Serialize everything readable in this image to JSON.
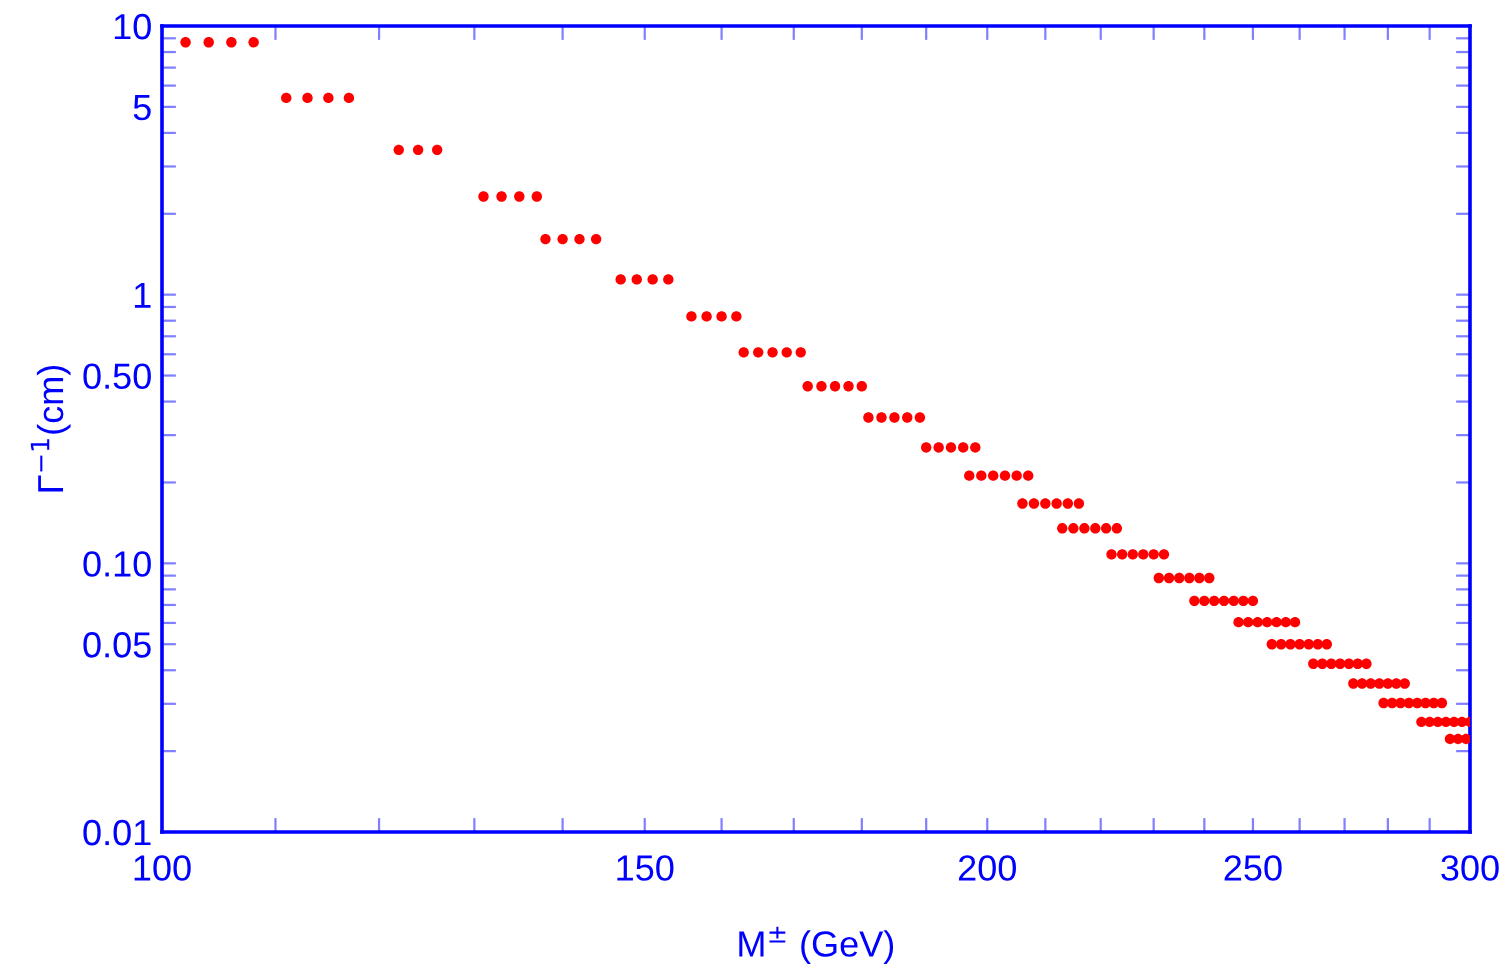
{
  "chart_data": {
    "type": "scatter",
    "xlabel": "M$^{±}$ (GeV)",
    "ylabel": "Γ$^{−1}$(cm)",
    "log": "xy",
    "grid": false,
    "marker": "circle",
    "xlim": [
      100,
      300
    ],
    "ylim": [
      0.01,
      10
    ],
    "xticks": [
      100,
      {
        "value": 110,
        "label": null
      },
      {
        "value": 120,
        "label": null
      },
      {
        "value": 130,
        "label": null
      },
      {
        "value": 140,
        "label": null
      },
      150,
      {
        "value": 160,
        "label": null
      },
      {
        "value": 170,
        "label": null
      },
      {
        "value": 180,
        "label": null
      },
      {
        "value": 190,
        "label": null
      },
      200,
      {
        "value": 210,
        "label": null
      },
      {
        "value": 220,
        "label": null
      },
      {
        "value": 230,
        "label": null
      },
      {
        "value": 240,
        "label": null
      },
      250,
      {
        "value": 260,
        "label": null
      },
      {
        "value": 270,
        "label": null
      },
      {
        "value": 280,
        "label": null
      },
      {
        "value": 290,
        "label": null
      },
      300
    ],
    "yticks": [
      0.01,
      {
        "value": 0.02,
        "label": null
      },
      {
        "value": 0.03,
        "label": null
      },
      {
        "value": 0.04,
        "label": null
      },
      0.05,
      {
        "value": 0.06,
        "label": null
      },
      {
        "value": 0.07,
        "label": null
      },
      {
        "value": 0.08,
        "label": null
      },
      {
        "value": 0.09,
        "label": null
      },
      {
        "value": 0.1,
        "label": "0.10"
      },
      {
        "value": 0.2,
        "label": null
      },
      {
        "value": 0.3,
        "label": null
      },
      {
        "value": 0.4,
        "label": null
      },
      {
        "value": 0.5,
        "label": "0.50"
      },
      {
        "value": 0.6,
        "label": null
      },
      {
        "value": 0.7,
        "label": null
      },
      {
        "value": 0.8,
        "label": null
      },
      {
        "value": 0.9,
        "label": null
      },
      1,
      {
        "value": 2,
        "label": null
      },
      {
        "value": 3,
        "label": null
      },
      {
        "value": 4,
        "label": null
      },
      5,
      {
        "value": 6,
        "label": null
      },
      {
        "value": 7,
        "label": null
      },
      {
        "value": 8,
        "label": null
      },
      {
        "value": 9,
        "label": null
      },
      10
    ],
    "series": [
      {
        "color": "#ff0000",
        "x": [
          102,
          104,
          106,
          108,
          111,
          113,
          115,
          117,
          122,
          124,
          126,
          131,
          133,
          135,
          137,
          138,
          140,
          142,
          144,
          147,
          149,
          151,
          153,
          156,
          158,
          160,
          162,
          163,
          165,
          167,
          169,
          171,
          172,
          174,
          176,
          178,
          180,
          181,
          183,
          185,
          187,
          189,
          190,
          192,
          194,
          196,
          198,
          197,
          199,
          201,
          203,
          205,
          207,
          206,
          208,
          210,
          212,
          214,
          216,
          213,
          215,
          217,
          219,
          221,
          223,
          222,
          224,
          226,
          228,
          230,
          232,
          231,
          233,
          235,
          237,
          239,
          241,
          238,
          240,
          242,
          244,
          246,
          248,
          250,
          247,
          249,
          251,
          253,
          255,
          257,
          259,
          254,
          256,
          258,
          260,
          262,
          264,
          266,
          263,
          265,
          267,
          269,
          271,
          273,
          275,
          272,
          274,
          276,
          278,
          280,
          282,
          284,
          279,
          281,
          283,
          285,
          287,
          289,
          291,
          293,
          288,
          290,
          292,
          294,
          296,
          298,
          300,
          295,
          297,
          299
        ],
        "values": [
          8.7,
          8.7,
          8.7,
          8.7,
          5.4,
          5.4,
          5.4,
          5.4,
          3.46,
          3.46,
          3.46,
          2.32,
          2.32,
          2.32,
          2.32,
          1.61,
          1.61,
          1.61,
          1.61,
          1.14,
          1.14,
          1.14,
          1.14,
          0.83,
          0.83,
          0.83,
          0.83,
          0.61,
          0.61,
          0.61,
          0.61,
          0.61,
          0.456,
          0.456,
          0.456,
          0.456,
          0.456,
          0.349,
          0.349,
          0.349,
          0.349,
          0.349,
          0.27,
          0.27,
          0.27,
          0.27,
          0.27,
          0.212,
          0.212,
          0.212,
          0.212,
          0.212,
          0.212,
          0.167,
          0.167,
          0.167,
          0.167,
          0.167,
          0.167,
          0.135,
          0.135,
          0.135,
          0.135,
          0.135,
          0.135,
          0.108,
          0.108,
          0.108,
          0.108,
          0.108,
          0.108,
          0.0882,
          0.0882,
          0.0882,
          0.0882,
          0.0882,
          0.0882,
          0.0725,
          0.0725,
          0.0725,
          0.0725,
          0.0725,
          0.0725,
          0.0725,
          0.0604,
          0.0604,
          0.0604,
          0.0604,
          0.0604,
          0.0604,
          0.0604,
          0.05,
          0.05,
          0.05,
          0.05,
          0.05,
          0.05,
          0.05,
          0.0423,
          0.0423,
          0.0423,
          0.0423,
          0.0423,
          0.0423,
          0.0423,
          0.0357,
          0.0357,
          0.0357,
          0.0357,
          0.0357,
          0.0357,
          0.0357,
          0.0302,
          0.0302,
          0.0302,
          0.0302,
          0.0302,
          0.0302,
          0.0302,
          0.0302,
          0.0257,
          0.0257,
          0.0257,
          0.0257,
          0.0257,
          0.0257,
          0.0257,
          0.0222,
          0.0222,
          0.0222
        ]
      }
    ]
  }
}
